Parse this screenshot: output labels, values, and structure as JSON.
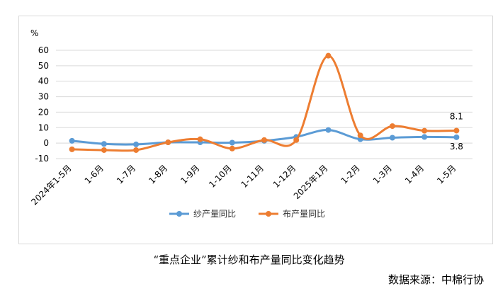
{
  "caption": "“重点企业”累计纱和布产量同比变化趋势",
  "source": "数据来源：中棉行协",
  "chart_data": {
    "type": "line",
    "ylabel": "%",
    "ylim": [
      -10,
      60
    ],
    "yticks": [
      -10,
      0,
      10,
      20,
      30,
      40,
      50,
      60
    ],
    "grid": true,
    "legend_position": "bottom",
    "categories": [
      "2024年1-5月",
      "1-6月",
      "1-7月",
      "1-8月",
      "1-9月",
      "1-10月",
      "1-11月",
      "1-12月",
      "2025年1月",
      "1-2月",
      "1-3月",
      "1-4月",
      "1-5月"
    ],
    "series": [
      {
        "name": "纱产量同比",
        "color": "#5b9bd5",
        "values": [
          1.5,
          -0.5,
          -0.8,
          0.5,
          0.5,
          0.3,
          1.5,
          4.0,
          8.5,
          2.5,
          3.5,
          4.0,
          3.8
        ],
        "annotations": [
          {
            "index": 12,
            "text": "3.8"
          }
        ]
      },
      {
        "name": "布产量同比",
        "color": "#ed7d31",
        "values": [
          -4.0,
          -4.5,
          -4.5,
          0.5,
          2.5,
          -3.5,
          2.0,
          2.0,
          56.5,
          5.0,
          11.0,
          8.0,
          8.1
        ],
        "annotations": [
          {
            "index": 12,
            "text": "8.1"
          }
        ]
      }
    ]
  }
}
